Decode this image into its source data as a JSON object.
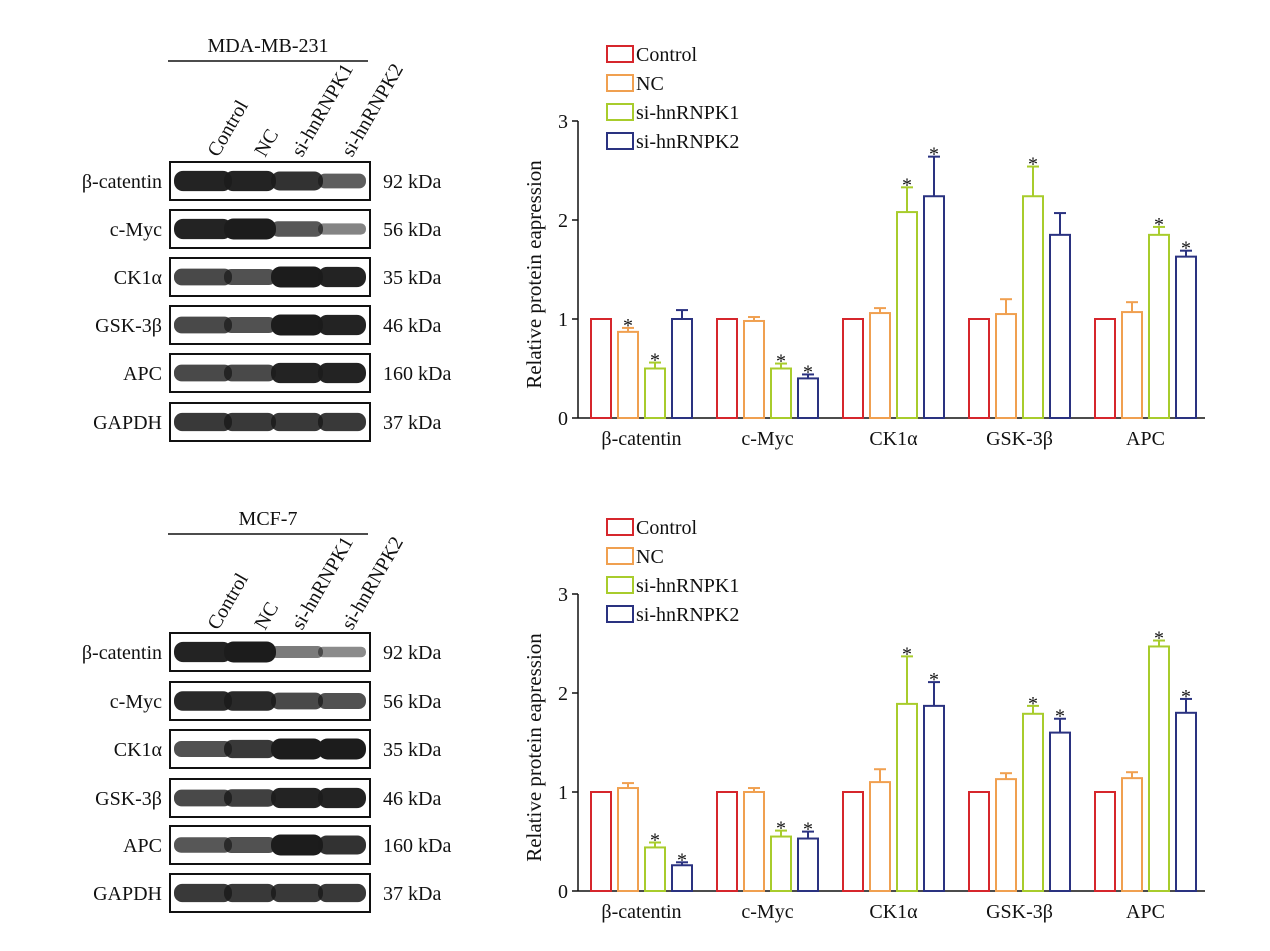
{
  "legend": [
    "Control",
    "NC",
    "si-hnRNPK1",
    "si-hnRNPK2"
  ],
  "colors": {
    "Control": "#d6262c",
    "NC": "#f0a050",
    "si-hnRNPK1": "#a8cc2c",
    "si-hnRNPK2": "#2a3280",
    "band": "#1c1c1c",
    "frame": "#111111"
  },
  "blot_lanes": [
    "Control",
    "NC",
    "si-hnRNPK1",
    "si-hnRNPK2"
  ],
  "blot_proteins": [
    "β-catentin",
    "c-Myc",
    "CK1α",
    "GSK-3β",
    "APC",
    "GAPDH"
  ],
  "blot_weights": [
    "92 kDa",
    "56 kDa",
    "35 kDa",
    "46 kDa",
    "160 kDa",
    "37 kDa"
  ],
  "panels": [
    {
      "cell_line": "MDA-MB-231",
      "band_intensity": [
        [
          0.95,
          0.95,
          0.85,
          0.55
        ],
        [
          0.95,
          1.0,
          0.6,
          0.3
        ],
        [
          0.7,
          0.65,
          1.0,
          0.95
        ],
        [
          0.7,
          0.65,
          1.0,
          0.95
        ],
        [
          0.7,
          0.7,
          0.95,
          0.95
        ],
        [
          0.8,
          0.8,
          0.8,
          0.8
        ]
      ]
    },
    {
      "cell_line": "MCF-7",
      "band_intensity": [
        [
          0.95,
          1.0,
          0.35,
          0.25
        ],
        [
          0.9,
          0.9,
          0.7,
          0.65
        ],
        [
          0.65,
          0.8,
          1.0,
          1.0
        ],
        [
          0.7,
          0.75,
          0.95,
          0.95
        ],
        [
          0.6,
          0.65,
          1.0,
          0.85
        ],
        [
          0.8,
          0.8,
          0.8,
          0.8
        ]
      ]
    }
  ],
  "chart_data": [
    {
      "type": "bar",
      "categories": [
        "β-catentin",
        "c-Myc",
        "CK1α",
        "GSK-3β",
        "APC"
      ],
      "ylabel": "Relative protein eapression",
      "ylim": [
        0,
        3
      ],
      "yticks": [
        "0",
        "1",
        "2",
        "3"
      ],
      "legend_position": "top-left",
      "series": [
        {
          "name": "Control",
          "values": [
            1,
            1,
            1,
            1,
            1
          ],
          "errors": [
            0,
            0,
            0,
            0,
            0
          ],
          "sig": [
            false,
            false,
            false,
            false,
            false
          ]
        },
        {
          "name": "NC",
          "values": [
            0.87,
            0.98,
            1.06,
            1.05,
            1.07
          ],
          "errors": [
            0.04,
            0.04,
            0.05,
            0.15,
            0.1
          ],
          "sig": [
            true,
            false,
            false,
            false,
            false
          ]
        },
        {
          "name": "si-hnRNPK1",
          "values": [
            0.5,
            0.5,
            2.08,
            2.24,
            1.85
          ],
          "errors": [
            0.06,
            0.05,
            0.25,
            0.3,
            0.08
          ],
          "sig": [
            true,
            true,
            true,
            true,
            true
          ]
        },
        {
          "name": "si-hnRNPK2",
          "values": [
            1.0,
            0.4,
            2.24,
            1.85,
            1.63
          ],
          "errors": [
            0.09,
            0.04,
            0.4,
            0.22,
            0.06
          ],
          "sig": [
            false,
            true,
            true,
            false,
            true
          ]
        }
      ]
    },
    {
      "type": "bar",
      "categories": [
        "β-catentin",
        "c-Myc",
        "CK1α",
        "GSK-3β",
        "APC"
      ],
      "ylabel": "Relative protein eapression",
      "ylim": [
        0,
        3
      ],
      "yticks": [
        "0",
        "1",
        "2",
        "3"
      ],
      "legend_position": "top-left",
      "series": [
        {
          "name": "Control",
          "values": [
            1,
            1,
            1,
            1,
            1
          ],
          "errors": [
            0,
            0,
            0,
            0,
            0
          ],
          "sig": [
            false,
            false,
            false,
            false,
            false
          ]
        },
        {
          "name": "NC",
          "values": [
            1.04,
            1.0,
            1.1,
            1.13,
            1.14
          ],
          "errors": [
            0.05,
            0.04,
            0.13,
            0.06,
            0.06
          ],
          "sig": [
            false,
            false,
            false,
            false,
            false
          ]
        },
        {
          "name": "si-hnRNPK1",
          "values": [
            0.44,
            0.55,
            1.89,
            1.79,
            2.47
          ],
          "errors": [
            0.05,
            0.06,
            0.48,
            0.08,
            0.06
          ],
          "sig": [
            true,
            true,
            true,
            true,
            true
          ]
        },
        {
          "name": "si-hnRNPK2",
          "values": [
            0.26,
            0.53,
            1.87,
            1.6,
            1.8
          ],
          "errors": [
            0.03,
            0.07,
            0.24,
            0.14,
            0.14
          ],
          "sig": [
            true,
            true,
            true,
            true,
            true
          ]
        }
      ]
    }
  ]
}
